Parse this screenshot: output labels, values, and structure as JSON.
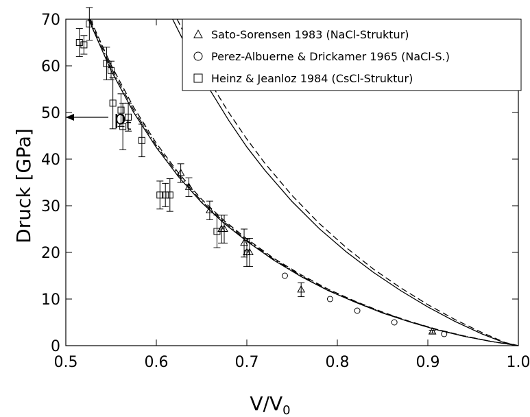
{
  "chart_data": {
    "type": "scatter",
    "xlabel_main": "V/V",
    "xlabel_sub": "0",
    "ylabel": "Druck [GPa]",
    "xlim": [
      0.5,
      1.0
    ],
    "ylim": [
      0,
      70
    ],
    "xticks": [
      "0.5",
      "0.6",
      "0.7",
      "0.8",
      "0.9",
      "1.0"
    ],
    "yticks": [
      "0",
      "10",
      "20",
      "30",
      "40",
      "50",
      "60",
      "70"
    ],
    "annotation": {
      "text_main": "p",
      "text_sub": "t",
      "y": 25
    },
    "legend_position": "top-right",
    "series": [
      {
        "name": "Sato-Sorensen 1983 (NaCl-Struktur)",
        "marker": "triangle",
        "points": [
          {
            "x": 0.627,
            "y": 37,
            "err": 2
          },
          {
            "x": 0.636,
            "y": 34,
            "err": 2
          },
          {
            "x": 0.659,
            "y": 29,
            "err": 2
          },
          {
            "x": 0.672,
            "y": 25,
            "err": 3
          },
          {
            "x": 0.675,
            "y": 25,
            "err": 3
          },
          {
            "x": 0.697,
            "y": 22,
            "err": 3
          },
          {
            "x": 0.7,
            "y": 20,
            "err": 3
          },
          {
            "x": 0.703,
            "y": 20,
            "err": 3
          },
          {
            "x": 0.76,
            "y": 12,
            "err": 1.5
          },
          {
            "x": 0.905,
            "y": 3,
            "err": 0.3
          }
        ]
      },
      {
        "name": "Perez-Albuerne & Drickamer 1965 (NaCl-S.)",
        "marker": "circle",
        "points": [
          {
            "x": 0.7,
            "y": 20
          },
          {
            "x": 0.742,
            "y": 15
          },
          {
            "x": 0.792,
            "y": 10
          },
          {
            "x": 0.822,
            "y": 7.5
          },
          {
            "x": 0.863,
            "y": 5
          },
          {
            "x": 0.918,
            "y": 2.5
          }
        ]
      },
      {
        "name": "Heinz & Jeanloz 1984 (CsCl-Struktur)",
        "marker": "square",
        "points": [
          {
            "x": 0.515,
            "y": 65,
            "err": 3
          },
          {
            "x": 0.52,
            "y": 64.5,
            "err": 2
          },
          {
            "x": 0.526,
            "y": 69,
            "err": 3.5
          },
          {
            "x": 0.545,
            "y": 60.5,
            "err": 3.5
          },
          {
            "x": 0.55,
            "y": 59,
            "err": 2
          },
          {
            "x": 0.552,
            "y": 52,
            "err": 5.5
          },
          {
            "x": 0.561,
            "y": 50.5,
            "err": 3.5
          },
          {
            "x": 0.563,
            "y": 47,
            "err": 5
          },
          {
            "x": 0.569,
            "y": 49,
            "err": 3
          },
          {
            "x": 0.584,
            "y": 44,
            "err": 3.5
          },
          {
            "x": 0.604,
            "y": 32.3,
            "err": 3
          },
          {
            "x": 0.61,
            "y": 32.3,
            "err": 2.5
          },
          {
            "x": 0.615,
            "y": 32.3,
            "err": 3.5
          },
          {
            "x": 0.667,
            "y": 24.5,
            "err": 3.5
          }
        ]
      }
    ],
    "curves": [
      {
        "style": "solid",
        "x": [
          0.618,
          0.64,
          0.66,
          0.68,
          0.7,
          0.72,
          0.75,
          0.78,
          0.81,
          0.84,
          0.87,
          0.9,
          0.93,
          0.96,
          0.985,
          1.0
        ],
        "y": [
          70,
          61.5,
          54.6,
          48.3,
          42.6,
          37.6,
          30.9,
          25.1,
          20.1,
          15.7,
          11.8,
          8.3,
          5.2,
          2.5,
          0.6,
          0
        ]
      },
      {
        "style": "dashed",
        "x": [
          0.623,
          0.64,
          0.66,
          0.68,
          0.7,
          0.72,
          0.75,
          0.78,
          0.81,
          0.84,
          0.87,
          0.9,
          0.93,
          0.96,
          0.985,
          1.0
        ],
        "y": [
          70,
          63.3,
          56.3,
          50.0,
          44.3,
          39.1,
          32.2,
          26.2,
          21.0,
          16.4,
          12.4,
          8.8,
          5.6,
          2.8,
          0.7,
          0
        ]
      },
      {
        "style": "solid",
        "x": [
          0.525,
          0.55,
          0.575,
          0.6,
          0.625,
          0.65,
          0.675,
          0.7,
          0.73,
          0.76,
          0.79,
          0.82,
          0.85,
          0.88,
          0.91,
          0.94,
          0.97,
          1.0
        ],
        "y": [
          70,
          59.0,
          50.0,
          42.5,
          36.1,
          30.7,
          26.2,
          22.4,
          18.3,
          14.8,
          11.8,
          9.3,
          7.0,
          5.1,
          3.4,
          2.0,
          0.9,
          0
        ]
      },
      {
        "style": "dashed",
        "x": [
          0.527,
          0.55,
          0.575,
          0.6,
          0.625,
          0.65,
          0.675,
          0.7,
          0.73,
          0.76,
          0.79,
          0.82,
          0.85,
          0.88,
          0.91,
          0.94,
          0.97,
          1.0
        ],
        "y": [
          70,
          60.2,
          51.1,
          43.4,
          36.9,
          31.4,
          26.8,
          22.9,
          18.7,
          15.2,
          12.1,
          9.5,
          7.2,
          5.2,
          3.5,
          2.1,
          0.9,
          0
        ]
      },
      {
        "style": "dashdot",
        "x": [
          0.526,
          0.55,
          0.575,
          0.6,
          0.625,
          0.65,
          0.675,
          0.7,
          0.73,
          0.76,
          0.79,
          0.82,
          0.85,
          0.88,
          0.91,
          0.94,
          0.97,
          1.0
        ],
        "y": [
          70,
          59.6,
          50.5,
          42.9,
          36.5,
          31.0,
          26.5,
          22.6,
          18.5,
          15.0,
          11.9,
          9.4,
          7.1,
          5.15,
          3.45,
          2.05,
          0.9,
          0
        ]
      }
    ]
  }
}
